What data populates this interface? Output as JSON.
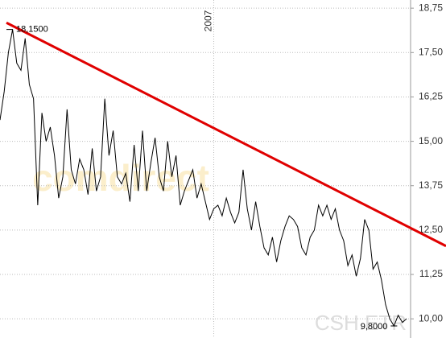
{
  "chart_data": {
    "type": "line",
    "title": "CSH.ETR",
    "watermark": "comdirect",
    "categories": [
      null,
      null,
      null,
      null,
      null,
      null,
      null,
      null,
      null,
      null,
      null,
      null,
      null,
      null,
      null,
      null,
      null,
      null,
      null,
      null,
      null,
      null,
      null,
      null,
      null,
      null,
      null,
      null,
      null,
      null,
      null,
      null,
      null,
      null,
      null,
      null,
      null,
      null,
      null,
      null,
      null,
      null,
      null,
      null,
      null,
      null,
      null,
      null,
      null,
      null,
      null,
      "2007",
      null,
      null,
      null,
      null,
      null,
      null,
      null,
      null,
      null,
      null,
      null,
      null,
      null,
      null,
      null,
      null,
      null,
      null,
      null,
      null,
      null,
      null,
      null,
      null,
      null,
      null,
      null,
      null,
      null,
      null,
      null,
      null,
      null,
      null,
      null,
      null,
      null,
      null,
      null,
      null,
      null,
      null,
      null,
      null,
      null,
      null
    ],
    "series": [
      {
        "color": "#000000",
        "values": [
          15.6,
          16.4,
          17.5,
          18.15,
          17.2,
          17.0,
          17.9,
          16.6,
          16.2,
          13.2,
          15.8,
          15.0,
          15.4,
          14.6,
          13.4,
          14.0,
          15.9,
          14.2,
          13.8,
          14.5,
          14.2,
          13.5,
          14.8,
          13.6,
          14.0,
          16.2,
          14.6,
          15.3,
          14.0,
          13.8,
          14.1,
          13.3,
          14.9,
          13.6,
          15.3,
          13.6,
          14.4,
          15.1,
          14.0,
          13.6,
          15.0,
          14.0,
          14.6,
          13.2,
          13.6,
          13.9,
          14.2,
          13.4,
          13.8,
          13.3,
          12.8,
          13.1,
          13.2,
          12.9,
          13.4,
          13.0,
          12.7,
          13.0,
          14.2,
          13.1,
          12.5,
          13.3,
          12.6,
          12.0,
          11.8,
          12.3,
          11.6,
          12.2,
          12.6,
          12.9,
          12.8,
          12.6,
          12.0,
          11.8,
          12.3,
          12.5,
          13.2,
          12.9,
          13.2,
          12.8,
          13.1,
          12.5,
          12.2,
          11.5,
          11.8,
          11.2,
          11.7,
          12.8,
          12.5,
          11.4,
          11.6,
          11.1,
          10.4,
          10.0,
          9.8,
          10.1,
          9.9,
          10.0
        ]
      }
    ],
    "trendline": {
      "color": "#e00000",
      "values": [
        18.34,
        12.05
      ]
    },
    "annotations": [
      {
        "text": "18,1500",
        "value": 18.15
      },
      {
        "text": "9,8000",
        "value": 9.8
      }
    ],
    "ylim": [
      9.46,
      18.98
    ],
    "yticks": [
      {
        "value": 10,
        "label": "10,00"
      },
      {
        "value": 11.25,
        "label": "11,25"
      },
      {
        "value": 12.5,
        "label": "12,50"
      },
      {
        "value": 13.75,
        "label": "13,75"
      },
      {
        "value": 15,
        "label": "15,00"
      },
      {
        "value": 16.25,
        "label": "16,25"
      },
      {
        "value": 17.5,
        "label": "17,50"
      },
      {
        "value": 18.75,
        "label": "18,75"
      }
    ],
    "grid": true
  }
}
